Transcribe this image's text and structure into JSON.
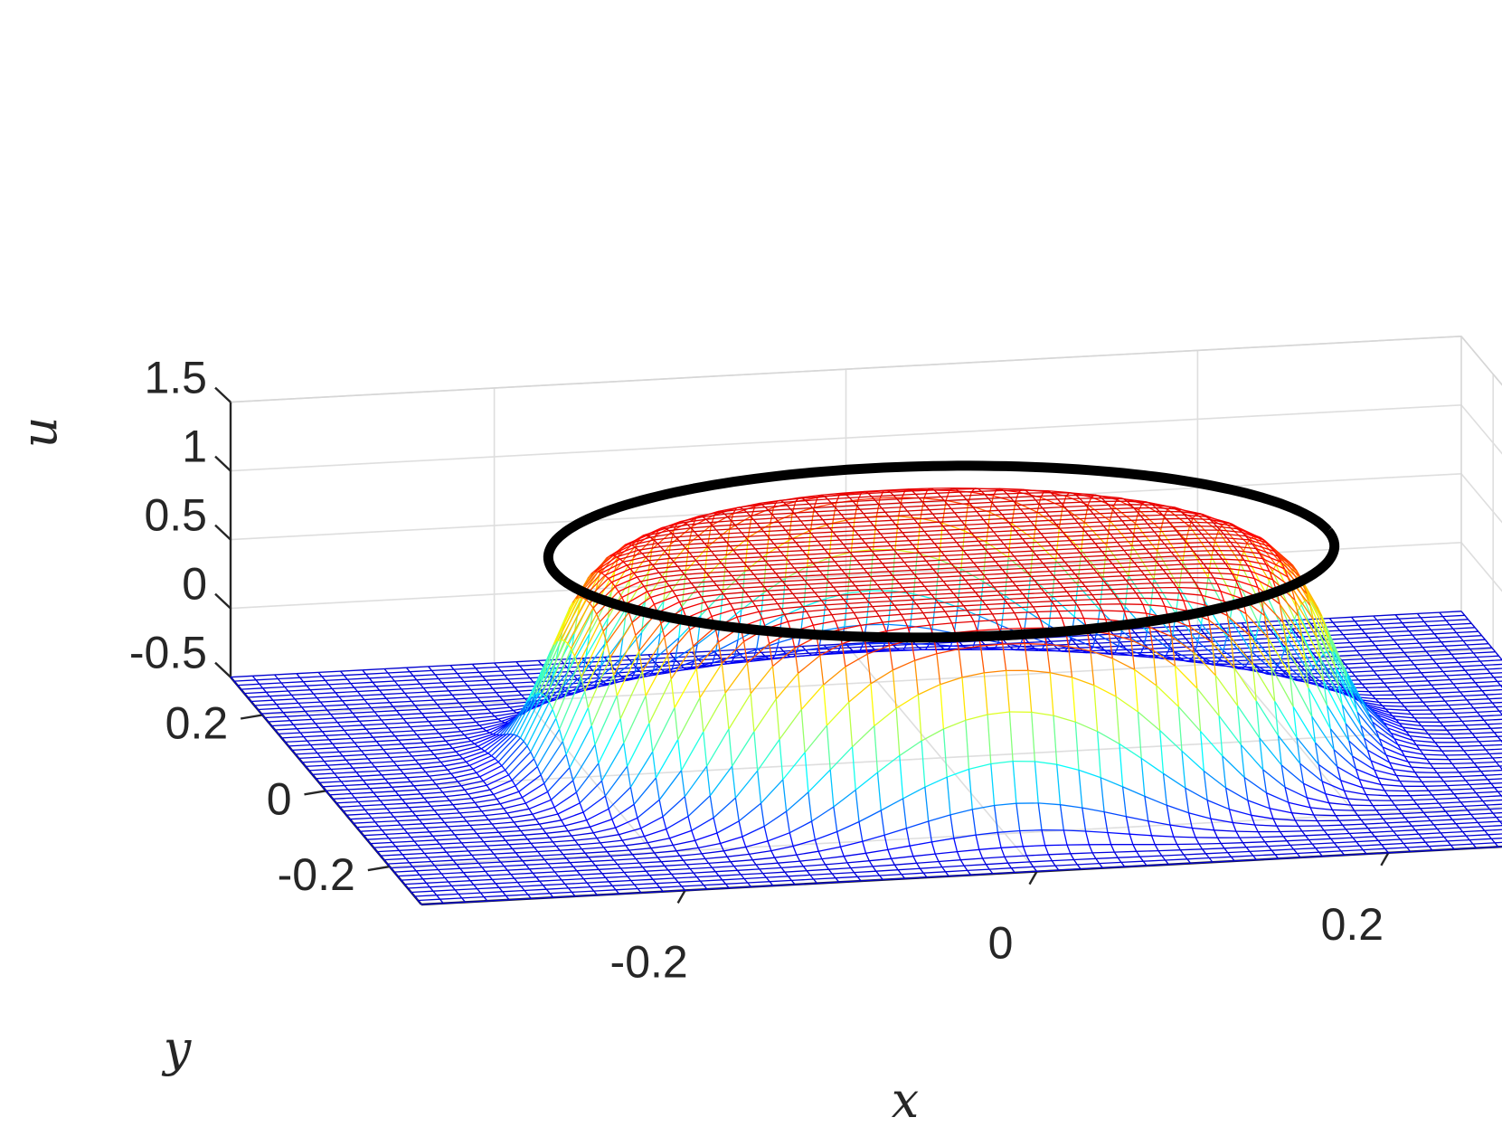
{
  "chart_data": {
    "type": "surface",
    "rendering": "3D mesh (wireframe) with jet colormap, plus a black closed curve (ellipse) near the top of the surface",
    "xlabel": "x",
    "ylabel": "y",
    "zlabel": "u",
    "xlim": [
      -0.35,
      0.35
    ],
    "ylim": [
      -0.3,
      0.3
    ],
    "zlim": [
      -0.5,
      1.5
    ],
    "x_ticks": [
      {
        "value": -0.2,
        "label": "-0.2"
      },
      {
        "value": 0,
        "label": "0"
      },
      {
        "value": 0.2,
        "label": "0.2"
      }
    ],
    "y_ticks": [
      {
        "value": -0.2,
        "label": "-0.2"
      },
      {
        "value": 0,
        "label": "0"
      },
      {
        "value": 0.2,
        "label": "0.2"
      }
    ],
    "z_ticks": [
      {
        "value": -0.5,
        "label": "-0.5"
      },
      {
        "value": 0,
        "label": "0"
      },
      {
        "value": 0.5,
        "label": "0.5"
      },
      {
        "value": 1,
        "label": "1"
      },
      {
        "value": 1.5,
        "label": "1.5"
      }
    ],
    "grid": true,
    "colormap": "jet",
    "surface": {
      "description": "plateau u≈1 inside a disk of radius ≈0.22 centred near (0,0), dropping to u≈-0.5 outside",
      "inner_value": 1.0,
      "outer_value": -0.5,
      "plateau_radius": 0.22
    },
    "interface_curve": {
      "description": "black circle of radius ≈0.22 at u≈1 marking the plateau edge",
      "radius": 0.22,
      "u": 1.0,
      "color": "#000000"
    }
  }
}
